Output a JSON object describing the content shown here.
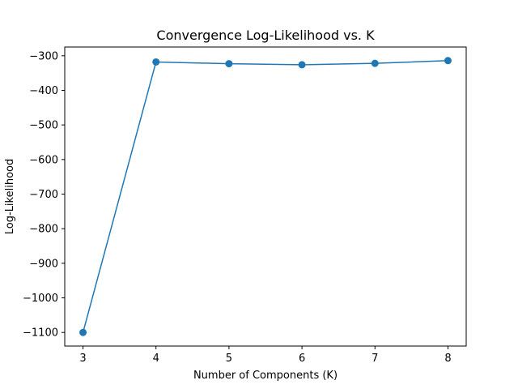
{
  "chart_data": {
    "type": "line",
    "title": "Convergence Log-Likelihood vs. K",
    "xlabel": "Number of Components (K)",
    "ylabel": "Log-Likelihood",
    "x": [
      3,
      4,
      5,
      6,
      7,
      8
    ],
    "series": [
      {
        "values": [
          -1100,
          -318,
          -323,
          -326,
          -322,
          -314
        ],
        "color": "#1f77b4",
        "marker": "circle"
      }
    ],
    "xticks": [
      3,
      4,
      5,
      6,
      7,
      8
    ],
    "xtick_labels": [
      "3",
      "4",
      "5",
      "6",
      "7",
      "8"
    ],
    "yticks": [
      -1100,
      -1000,
      -900,
      -800,
      -700,
      -600,
      -500,
      -400,
      -300
    ],
    "ytick_labels": [
      "−1100",
      "−1000",
      "−900",
      "−800",
      "−700",
      "−600",
      "−500",
      "−400",
      "−300"
    ],
    "xlim": [
      2.75,
      8.25
    ],
    "ylim": [
      -1139.3,
      -274.7
    ],
    "grid": false,
    "legend": "none"
  }
}
